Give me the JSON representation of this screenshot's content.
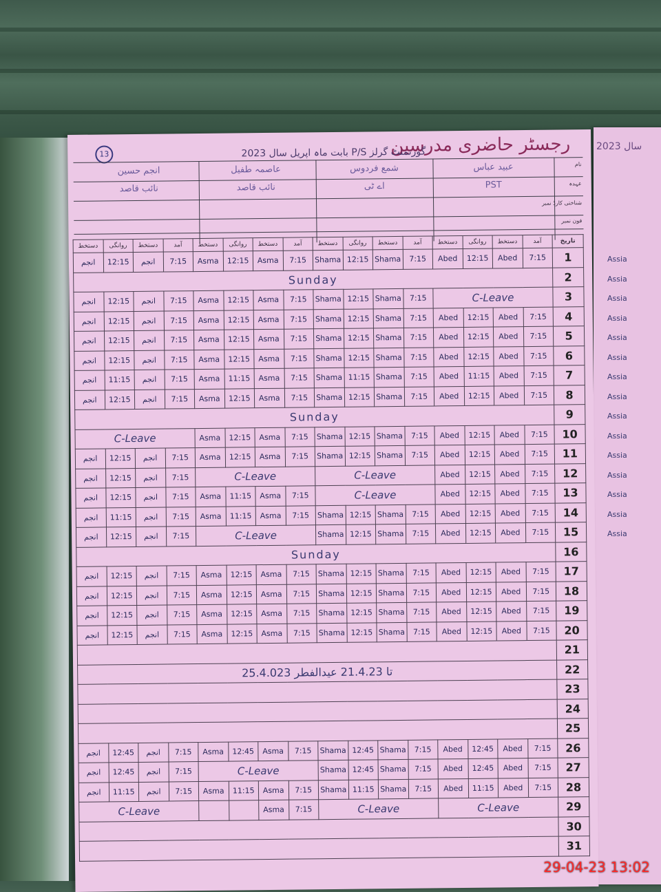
{
  "register": {
    "title": "رجسٹر حاضری مدرسین",
    "subtitle": "گورنمنٹ گرلز P/S بابت ماہ اپریل سال 2023",
    "page_number": "13",
    "row_labels": [
      "نام",
      "عہدہ",
      "شناختی کارڈ نمبر",
      "فون نمبر"
    ],
    "teachers": [
      {
        "name": "انجم حسین",
        "post": "نائب قاصد"
      },
      {
        "name": "عاصمہ طفیل",
        "post": "نائب قاصد"
      },
      {
        "name": "شمع فردوس",
        "post": "اے ٹی"
      },
      {
        "name": "عبید عباس",
        "post": "PST"
      }
    ],
    "date_header": "تاریخ",
    "column_headers": [
      "دستخط",
      "روانگی",
      "دستخط",
      "آمد"
    ],
    "rows": [
      {
        "date": "1",
        "cells": [
          [
            "انجم",
            "12:15",
            "انجم",
            "7:15"
          ],
          [
            "Asma",
            "12:15",
            "Asma",
            "7:15"
          ],
          [
            "Shama",
            "12:15",
            "Shama",
            "7:15"
          ],
          [
            "Abed",
            "12:15",
            "Abed",
            "7:15"
          ]
        ]
      },
      {
        "date": "2",
        "note": "Sunday"
      },
      {
        "date": "3",
        "cells": [
          [
            "انجم",
            "12:15",
            "انجم",
            "7:15"
          ],
          [
            "Asma",
            "12:15",
            "Asma",
            "7:15"
          ],
          [
            "Shama",
            "12:15",
            "Shama",
            "7:15"
          ],
          "C-Leave"
        ]
      },
      {
        "date": "4",
        "cells": [
          [
            "انجم",
            "12:15",
            "انجم",
            "7:15"
          ],
          [
            "Asma",
            "12:15",
            "Asma",
            "7:15"
          ],
          [
            "Shama",
            "12:15",
            "Shama",
            "7:15"
          ],
          [
            "Abed",
            "12:15",
            "Abed",
            "7:15"
          ]
        ]
      },
      {
        "date": "5",
        "cells": [
          [
            "انجم",
            "12:15",
            "انجم",
            "7:15"
          ],
          [
            "Asma",
            "12:15",
            "Asma",
            "7:15"
          ],
          [
            "Shama",
            "12:15",
            "Shama",
            "7:15"
          ],
          [
            "Abed",
            "12:15",
            "Abed",
            "7:15"
          ]
        ]
      },
      {
        "date": "6",
        "cells": [
          [
            "انجم",
            "12:15",
            "انجم",
            "7:15"
          ],
          [
            "Asma",
            "12:15",
            "Asma",
            "7:15"
          ],
          [
            "Shama",
            "12:15",
            "Shama",
            "7:15"
          ],
          [
            "Abed",
            "12:15",
            "Abed",
            "7:15"
          ]
        ]
      },
      {
        "date": "7",
        "cells": [
          [
            "انجم",
            "11:15",
            "انجم",
            "7:15"
          ],
          [
            "Asma",
            "11:15",
            "Asma",
            "7:15"
          ],
          [
            "Shama",
            "11:15",
            "Shama",
            "7:15"
          ],
          [
            "Abed",
            "11:15",
            "Abed",
            "7:15"
          ]
        ]
      },
      {
        "date": "8",
        "cells": [
          [
            "انجم",
            "12:15",
            "انجم",
            "7:15"
          ],
          [
            "Asma",
            "12:15",
            "Asma",
            "7:15"
          ],
          [
            "Shama",
            "12:15",
            "Shama",
            "7:15"
          ],
          [
            "Abed",
            "12:15",
            "Abed",
            "7:15"
          ]
        ]
      },
      {
        "date": "9",
        "note": "Sunday"
      },
      {
        "date": "10",
        "cells": [
          "C-Leave",
          [
            "Asma",
            "12:15",
            "Asma",
            "7:15"
          ],
          [
            "Shama",
            "12:15",
            "Shama",
            "7:15"
          ],
          [
            "Abed",
            "12:15",
            "Abed",
            "7:15"
          ]
        ]
      },
      {
        "date": "11",
        "cells": [
          [
            "انجم",
            "12:15",
            "انجم",
            "7:15"
          ],
          [
            "Asma",
            "12:15",
            "Asma",
            "7:15"
          ],
          [
            "Shama",
            "12:15",
            "Shama",
            "7:15"
          ],
          [
            "Abed",
            "12:15",
            "Abed",
            "7:15"
          ]
        ]
      },
      {
        "date": "12",
        "cells": [
          [
            "انجم",
            "12:15",
            "انجم",
            "7:15"
          ],
          "C-Leave",
          "C-Leave",
          [
            "Abed",
            "12:15",
            "Abed",
            "7:15"
          ]
        ]
      },
      {
        "date": "13",
        "cells": [
          [
            "انجم",
            "12:15",
            "انجم",
            "7:15"
          ],
          [
            "Asma",
            "11:15",
            "Asma",
            "7:15"
          ],
          "C-Leave",
          [
            "Abed",
            "12:15",
            "Abed",
            "7:15"
          ]
        ]
      },
      {
        "date": "14",
        "cells": [
          [
            "انجم",
            "11:15",
            "انجم",
            "7:15"
          ],
          [
            "Asma",
            "11:15",
            "Asma",
            "7:15"
          ],
          [
            "Shama",
            "12:15",
            "Shama",
            "7:15"
          ],
          [
            "Abed",
            "12:15",
            "Abed",
            "7:15"
          ]
        ]
      },
      {
        "date": "15",
        "cells": [
          [
            "انجم",
            "12:15",
            "انجم",
            "7:15"
          ],
          "C-Leave",
          [
            "Shama",
            "12:15",
            "Shama",
            "7:15"
          ],
          [
            "Abed",
            "12:15",
            "Abed",
            "7:15"
          ]
        ]
      },
      {
        "date": "16",
        "note": "Sunday"
      },
      {
        "date": "17",
        "cells": [
          [
            "انجم",
            "12:15",
            "انجم",
            "7:15"
          ],
          [
            "Asma",
            "12:15",
            "Asma",
            "7:15"
          ],
          [
            "Shama",
            "12:15",
            "Shama",
            "7:15"
          ],
          [
            "Abed",
            "12:15",
            "Abed",
            "7:15"
          ]
        ]
      },
      {
        "date": "18",
        "cells": [
          [
            "انجم",
            "12:15",
            "انجم",
            "7:15"
          ],
          [
            "Asma",
            "12:15",
            "Asma",
            "7:15"
          ],
          [
            "Shama",
            "12:15",
            "Shama",
            "7:15"
          ],
          [
            "Abed",
            "12:15",
            "Abed",
            "7:15"
          ]
        ]
      },
      {
        "date": "19",
        "cells": [
          [
            "انجم",
            "12:15",
            "انجم",
            "7:15"
          ],
          [
            "Asma",
            "12:15",
            "Asma",
            "7:15"
          ],
          [
            "Shama",
            "12:15",
            "Shama",
            "7:15"
          ],
          [
            "Abed",
            "12:15",
            "Abed",
            "7:15"
          ]
        ]
      },
      {
        "date": "20",
        "cells": [
          [
            "انجم",
            "12:15",
            "انجم",
            "7:15"
          ],
          [
            "Asma",
            "12:15",
            "Asma",
            "7:15"
          ],
          [
            "Shama",
            "12:15",
            "Shama",
            "7:15"
          ],
          [
            "Abed",
            "12:15",
            "Abed",
            "7:15"
          ]
        ]
      },
      {
        "date": "21",
        "note": ""
      },
      {
        "date": "22",
        "note": "25.4.023 تا 21.4.23 عیدالفطر"
      },
      {
        "date": "23",
        "note": ""
      },
      {
        "date": "24",
        "note": ""
      },
      {
        "date": "25",
        "note": ""
      },
      {
        "date": "26",
        "cells": [
          [
            "انجم",
            "12:45",
            "انجم",
            "7:15"
          ],
          [
            "Asma",
            "12:45",
            "Asma",
            "7:15"
          ],
          [
            "Shama",
            "12:45",
            "Shama",
            "7:15"
          ],
          [
            "Abed",
            "12:45",
            "Abed",
            "7:15"
          ]
        ]
      },
      {
        "date": "27",
        "cells": [
          [
            "انجم",
            "12:45",
            "انجم",
            "7:15"
          ],
          "C-Leave",
          [
            "Shama",
            "12:45",
            "Shama",
            "7:15"
          ],
          [
            "Abed",
            "12:45",
            "Abed",
            "7:15"
          ]
        ]
      },
      {
        "date": "28",
        "cells": [
          [
            "انجم",
            "11:15",
            "انجم",
            "7:15"
          ],
          [
            "Asma",
            "11:15",
            "Asma",
            "7:15"
          ],
          [
            "Shama",
            "11:15",
            "Shama",
            "7:15"
          ],
          [
            "Abed",
            "11:15",
            "Abed",
            "7:15"
          ]
        ]
      },
      {
        "date": "29",
        "cells": [
          "C-Leave",
          [
            "",
            "",
            "Asma",
            "7:15"
          ],
          "C-Leave",
          "C-Leave"
        ]
      },
      {
        "date": "30",
        "note": ""
      },
      {
        "date": "31",
        "note": ""
      }
    ]
  },
  "right_page": {
    "title": "سال 2023",
    "entries": [
      "Assia",
      "Assia",
      "Assia",
      "Assia",
      "Assia",
      "Assia",
      "Assia",
      "Assia",
      "Assia",
      "Assia",
      "Assia",
      "Assia",
      "Assia",
      "Assia",
      "Assia"
    ]
  },
  "camera_timestamp": "29-04-23  13:02",
  "colors": {
    "paper": "#ecc8e6",
    "ink": "#2a2a5a",
    "title_ink": "#8a2b5a",
    "timestamp": "#ff2a2a"
  }
}
